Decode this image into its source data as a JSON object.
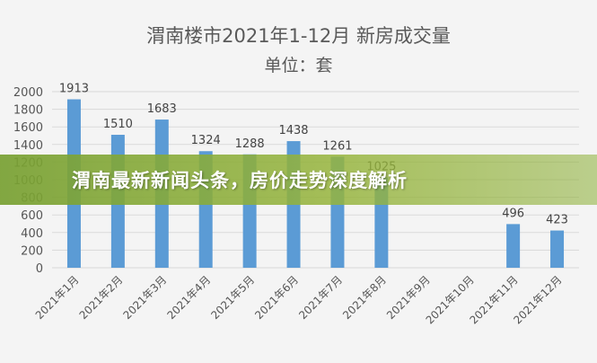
{
  "banner": {
    "headline": "渭南最新新闻头条，房价走势深度解析",
    "color": "#8db040"
  },
  "chart_data": {
    "type": "bar",
    "title": "渭南楼市2021年1-12月 新房成交量",
    "subtitle": "单位：套",
    "categories": [
      "2021年1月",
      "2021年2月",
      "2021年3月",
      "2021年4月",
      "2021年5月",
      "2021年6月",
      "2021年7月",
      "2021年8月",
      "2021年9月",
      "2021年10月",
      "2021年11月",
      "2021年12月"
    ],
    "values": [
      1913,
      1510,
      1683,
      1324,
      1288,
      1438,
      1261,
      1025,
      null,
      null,
      496,
      423
    ],
    "data_labels": [
      "1913",
      "1510",
      "1683",
      "1324",
      "1288",
      "1438",
      "1261",
      "1025",
      "",
      "",
      "496",
      "423"
    ],
    "ylim": [
      0,
      2000
    ],
    "yticks": [
      0,
      200,
      400,
      600,
      800,
      1000,
      1200,
      1400,
      1600,
      1800,
      2000
    ],
    "grid": true,
    "bar_color": "#5b9bd5"
  }
}
